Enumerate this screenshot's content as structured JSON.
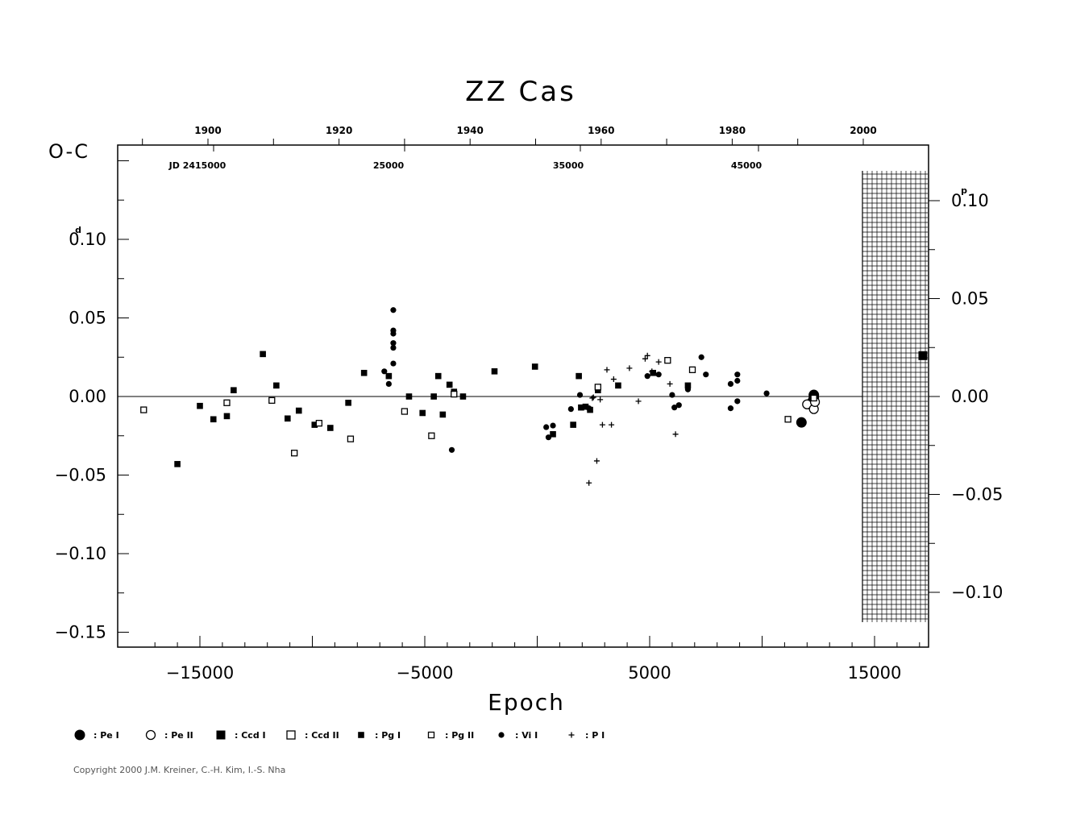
{
  "chart_data": {
    "type": "scatter",
    "title": "ZZ Cas",
    "ylabel": "O-C",
    "xlabel": "Epoch",
    "left_unit": "d",
    "right_unit": "p",
    "xlim": [
      -19000,
      17000
    ],
    "ylim": [
      -0.16,
      0.16
    ],
    "right_ylim": [
      -0.1147,
      0.1147
    ],
    "x_ticks": [
      -15000,
      -5000,
      5000,
      15000
    ],
    "x_tick_labels": [
      "−15000",
      "−5000",
      "5000",
      "15000"
    ],
    "y_ticks": [
      0.1,
      0.05,
      0.0,
      -0.05,
      -0.1,
      -0.15
    ],
    "y_tick_labels": [
      "0.10",
      "0.05",
      "0.00",
      "−0.05",
      "−0.10",
      "−0.15"
    ],
    "right_y_ticks": [
      0.1,
      0.05,
      0.0,
      -0.05,
      -0.1
    ],
    "right_y_tick_labels": [
      "0.10",
      "0.05",
      "0.00",
      "−0.05",
      "−0.10"
    ],
    "top_year_ticks": [
      1900,
      1920,
      1940,
      1960,
      1980,
      2000
    ],
    "top_year_labels": [
      "1900",
      "1920",
      "1940",
      "1960",
      "1980",
      "2000"
    ],
    "jd_labels": [
      "JD 2415000",
      "25000",
      "35000",
      "45000"
    ],
    "legend": [
      {
        "symbol": "pe1",
        "label": ": Pe I"
      },
      {
        "symbol": "pe2",
        "label": ": Pe II"
      },
      {
        "symbol": "ccd1",
        "label": ": Ccd I"
      },
      {
        "symbol": "ccd2",
        "label": ": Ccd II"
      },
      {
        "symbol": "pg1",
        "label": ": Pg I"
      },
      {
        "symbol": "pg2",
        "label": ": Pg II"
      },
      {
        "symbol": "vi1",
        "label": ": Vi I"
      },
      {
        "symbol": "p1",
        "label": ": P I"
      }
    ],
    "series": [
      {
        "symbol": "pe1",
        "points": [
          [
            11750,
            -0.0165
          ],
          [
            12250,
            -0.003
          ],
          [
            12250,
            -0.005
          ],
          [
            12300,
            -0.001
          ],
          [
            12300,
            0.001
          ]
        ]
      },
      {
        "symbol": "pe2",
        "points": [
          [
            12000,
            -0.005
          ],
          [
            12300,
            -0.008
          ],
          [
            12350,
            -0.0035
          ]
        ]
      },
      {
        "symbol": "ccd1",
        "points": [
          [
            17150,
            0.026
          ]
        ]
      },
      {
        "symbol": "pg1",
        "points": [
          [
            -16000,
            -0.043
          ],
          [
            -15000,
            -0.006
          ],
          [
            -14400,
            -0.0145
          ],
          [
            -13800,
            -0.0125
          ],
          [
            -13500,
            0.004
          ],
          [
            -12200,
            0.027
          ],
          [
            -11600,
            0.007
          ],
          [
            -11100,
            -0.014
          ],
          [
            -10600,
            -0.009
          ],
          [
            -9900,
            -0.018
          ],
          [
            -9200,
            -0.02
          ],
          [
            -8400,
            -0.004
          ],
          [
            -7700,
            0.015
          ],
          [
            -6600,
            0.013
          ],
          [
            -5700,
            0.0
          ],
          [
            -5100,
            -0.0105
          ],
          [
            -4600,
            0.0
          ],
          [
            -4400,
            0.013
          ],
          [
            -4200,
            -0.0115
          ],
          [
            -3900,
            0.0075
          ],
          [
            -3700,
            0.003
          ],
          [
            -3300,
            0.0
          ],
          [
            -1900,
            0.016
          ],
          [
            -100,
            0.019
          ],
          [
            700,
            -0.024
          ],
          [
            1600,
            -0.018
          ],
          [
            1850,
            0.013
          ],
          [
            1950,
            -0.007
          ],
          [
            2150,
            -0.0065
          ],
          [
            2350,
            -0.0085
          ],
          [
            2700,
            0.004
          ],
          [
            3600,
            0.007
          ],
          [
            5150,
            0.015
          ],
          [
            6700,
            0.007
          ]
        ]
      },
      {
        "symbol": "pg2",
        "points": [
          [
            -17500,
            -0.0085
          ],
          [
            -13800,
            -0.004
          ],
          [
            -11800,
            -0.0025
          ],
          [
            -10800,
            -0.036
          ],
          [
            -9700,
            -0.017
          ],
          [
            -8300,
            -0.027
          ],
          [
            -5900,
            -0.0095
          ],
          [
            -4700,
            -0.025
          ],
          [
            -3700,
            0.0015
          ],
          [
            2700,
            0.006
          ],
          [
            5800,
            0.023
          ],
          [
            6900,
            0.017
          ],
          [
            11150,
            -0.0145
          ],
          [
            12300,
            -0.001
          ]
        ]
      },
      {
        "symbol": "vi1",
        "points": [
          [
            -6800,
            0.016
          ],
          [
            -6600,
            0.008
          ],
          [
            -6400,
            0.055
          ],
          [
            -6400,
            0.042
          ],
          [
            -6400,
            0.04
          ],
          [
            -6400,
            0.034
          ],
          [
            -6400,
            0.031
          ],
          [
            -6400,
            0.021
          ],
          [
            -3800,
            -0.034
          ],
          [
            400,
            -0.0195
          ],
          [
            500,
            -0.026
          ],
          [
            700,
            -0.0185
          ],
          [
            1500,
            -0.008
          ],
          [
            1900,
            0.001
          ],
          [
            2300,
            -0.0075
          ],
          [
            4900,
            0.013
          ],
          [
            5400,
            0.014
          ],
          [
            6000,
            0.001
          ],
          [
            6100,
            -0.007
          ],
          [
            6300,
            -0.0055
          ],
          [
            6700,
            0.0045
          ],
          [
            7300,
            0.025
          ],
          [
            7500,
            0.014
          ],
          [
            8600,
            0.008
          ],
          [
            8600,
            -0.0075
          ],
          [
            8900,
            0.014
          ],
          [
            8900,
            0.01
          ],
          [
            8900,
            -0.003
          ],
          [
            10200,
            0.002
          ]
        ]
      },
      {
        "symbol": "p1",
        "points": [
          [
            2300,
            -0.055
          ],
          [
            2500,
            -0.0005
          ],
          [
            2650,
            -0.041
          ],
          [
            2900,
            -0.018
          ],
          [
            3100,
            0.017
          ],
          [
            3300,
            -0.018
          ],
          [
            3400,
            0.011
          ],
          [
            4100,
            0.018
          ],
          [
            4500,
            -0.003
          ],
          [
            4800,
            0.024
          ],
          [
            4900,
            0.026
          ],
          [
            5100,
            0.016
          ],
          [
            5400,
            0.022
          ],
          [
            5900,
            0.008
          ],
          [
            6150,
            -0.024
          ],
          [
            2800,
            -0.002
          ],
          [
            2450,
            -0.001
          ]
        ]
      }
    ]
  },
  "copyright": "Copyright 2000 J.M. Kreiner, C.-H. Kim, I.-S. Nha"
}
